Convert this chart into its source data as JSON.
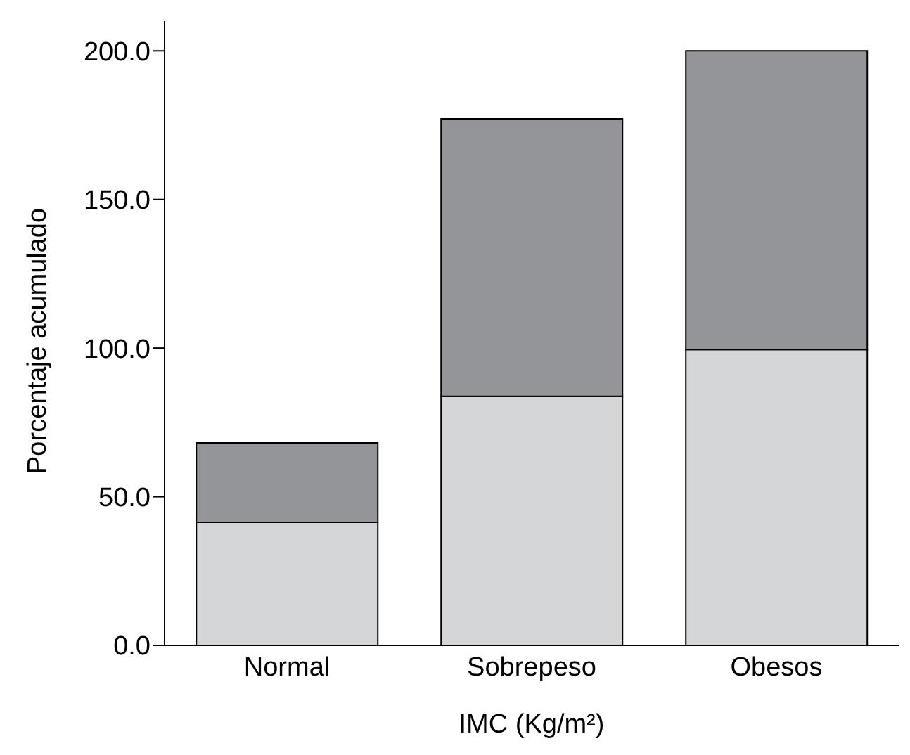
{
  "chart_data": {
    "type": "bar",
    "stacked": true,
    "xlabel": "IMC (Kg/m²)",
    "ylabel": "Porcentaje acumulado",
    "categories": [
      "Normal",
      "Sobrepeso",
      "Obesos"
    ],
    "series": [
      {
        "color": "#d4d5d7",
        "values": [
          41.4,
          83.8,
          99.5
        ]
      },
      {
        "color": "#939598",
        "values": [
          26.7,
          93.3,
          100.5
        ]
      }
    ],
    "ylim": [
      0,
      210
    ],
    "yticks": [
      {
        "value": 0,
        "label": "0.0"
      },
      {
        "value": 50,
        "label": "50.0"
      },
      {
        "value": 100,
        "label": "100.0"
      },
      {
        "value": 150,
        "label": "150.0"
      },
      {
        "value": 200,
        "label": "200.0"
      }
    ],
    "grid": false,
    "legend": false
  }
}
